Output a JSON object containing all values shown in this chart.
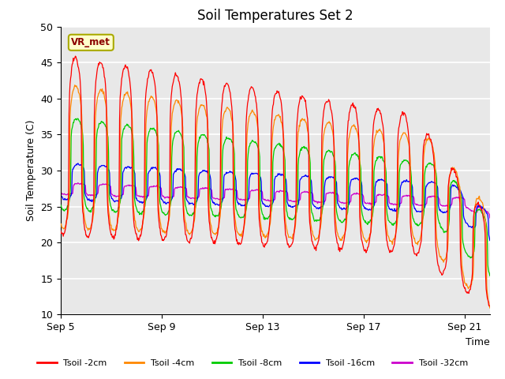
{
  "title": "Soil Temperatures Set 2",
  "xlabel": "Time",
  "ylabel": "Soil Temperature (C)",
  "ylim": [
    10,
    50
  ],
  "yticks": [
    10,
    15,
    20,
    25,
    30,
    35,
    40,
    45,
    50
  ],
  "xtick_labels": [
    "Sep 5",
    "Sep 9",
    "Sep 13",
    "Sep 17",
    "Sep 21"
  ],
  "xtick_positions": [
    0,
    4,
    8,
    12,
    16
  ],
  "annotation_text": "VR_met",
  "colors": {
    "tsoil_2cm": "#ff0000",
    "tsoil_4cm": "#ff8800",
    "tsoil_8cm": "#00cc00",
    "tsoil_16cm": "#0000ff",
    "tsoil_32cm": "#cc00cc"
  },
  "legend_labels": [
    "Tsoil -2cm",
    "Tsoil -4cm",
    "Tsoil -8cm",
    "Tsoil -16cm",
    "Tsoil -32cm"
  ],
  "background_color": "#e8e8e8",
  "title_fontsize": 12,
  "label_fontsize": 9,
  "tick_fontsize": 9,
  "n_days": 17,
  "pts_per_day": 48
}
